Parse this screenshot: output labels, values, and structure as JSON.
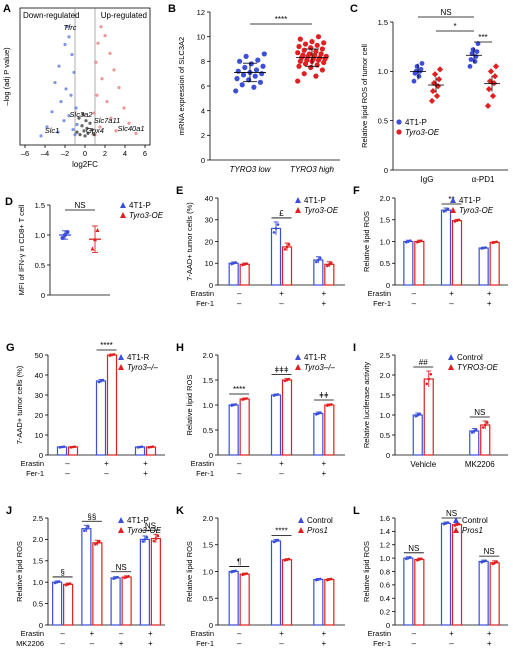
{
  "chart_data": [
    {
      "panel": "A",
      "type": "scatter",
      "xlabel": "log2FC",
      "ylabel": "–log (adj P value)",
      "xticks": [
        "–6",
        "–4",
        "–2",
        "0",
        "2",
        "4",
        "6"
      ],
      "xlim": [
        -6.5,
        6.5
      ],
      "annotations": [
        "Down-regulated",
        "Up-regulated",
        "Tfrc",
        "Slc3a2",
        "Slc7a11",
        "Gpx4",
        "Slc40a1",
        "Slc1"
      ],
      "series": [
        {
          "color": "#4a6cd4",
          "points": [
            [
              -1.8,
              9.0
            ],
            [
              -1.6,
              8.2
            ],
            [
              -2.0,
              7.6
            ],
            [
              -1.3,
              6.8
            ],
            [
              -2.6,
              5.9
            ],
            [
              -1.1,
              5.4
            ],
            [
              -3.0,
              4.6
            ],
            [
              -1.9,
              4.1
            ],
            [
              -1.4,
              3.6
            ],
            [
              -2.4,
              3.1
            ],
            [
              -0.9,
              2.6
            ],
            [
              -3.3,
              2.3
            ],
            [
              -1.6,
              2.0
            ],
            [
              -2.1,
              1.6
            ],
            [
              -0.8,
              1.3
            ],
            [
              -3.8,
              1.1
            ],
            [
              -1.2,
              0.9
            ],
            [
              -2.7,
              0.7
            ],
            [
              -1.0,
              0.5
            ],
            [
              -4.4,
              0.4
            ]
          ]
        },
        {
          "color": "#e46c6c",
          "points": [
            [
              1.6,
              9.0
            ],
            [
              2.0,
              8.3
            ],
            [
              1.3,
              7.7
            ],
            [
              2.5,
              6.9
            ],
            [
              1.1,
              6.2
            ],
            [
              2.9,
              5.6
            ],
            [
              1.7,
              4.9
            ],
            [
              3.4,
              4.2
            ],
            [
              1.2,
              3.6
            ],
            [
              2.2,
              3.1
            ],
            [
              3.9,
              2.6
            ],
            [
              0.9,
              2.2
            ],
            [
              2.6,
              1.8
            ],
            [
              4.4,
              1.4
            ],
            [
              1.5,
              1.1
            ],
            [
              3.1,
              0.8
            ],
            [
              5.1,
              0.6
            ],
            [
              1.0,
              0.5
            ]
          ]
        },
        {
          "color": "#222222",
          "points": [
            [
              -0.6,
              1.8
            ],
            [
              -0.3,
              1.2
            ],
            [
              0.2,
              1.0
            ],
            [
              0.5,
              1.4
            ],
            [
              -0.1,
              0.8
            ],
            [
              0.3,
              0.6
            ],
            [
              -0.5,
              0.5
            ],
            [
              0.7,
              0.9
            ],
            [
              0.0,
              0.4
            ],
            [
              -0.8,
              0.7
            ],
            [
              0.9,
              0.5
            ],
            [
              0.1,
              1.6
            ],
            [
              -0.2,
              2.1
            ]
          ]
        }
      ]
    },
    {
      "panel": "B",
      "type": "scatter",
      "ylabel": "mRNA expression of SLC3A2",
      "categories": [
        "TYRO3 low",
        "TYRO3 high"
      ],
      "yticks": [
        "0",
        "2",
        "4",
        "6",
        "8",
        "10",
        "12"
      ],
      "ylim": [
        0,
        12
      ],
      "significance": "****",
      "series": [
        {
          "name": "TYRO3 low",
          "color": "#3b4fd8",
          "mean": 7.1,
          "sd": 0.75,
          "values": [
            5.6,
            5.9,
            6.1,
            6.3,
            6.5,
            6.6,
            6.8,
            6.9,
            7.0,
            7.1,
            7.2,
            7.3,
            7.5,
            7.6,
            7.8,
            8.0,
            8.1,
            8.4,
            8.6
          ]
        },
        {
          "name": "TYRO3 high",
          "color": "#e02020",
          "mean": 8.3,
          "sd": 0.7,
          "values": [
            6.4,
            6.8,
            7.0,
            7.3,
            7.5,
            7.6,
            7.7,
            7.8,
            7.9,
            8.0,
            8.0,
            8.1,
            8.1,
            8.2,
            8.2,
            8.3,
            8.3,
            8.4,
            8.4,
            8.5,
            8.5,
            8.6,
            8.6,
            8.7,
            8.8,
            8.9,
            9.0,
            9.1,
            9.2,
            9.3,
            9.4,
            9.5,
            9.6,
            9.8,
            10.0
          ]
        }
      ]
    },
    {
      "panel": "C",
      "type": "scatter",
      "ylabel": "Relative lipid ROS of tumor cell",
      "categories": [
        "IgG",
        "α-PD1"
      ],
      "yticks": [
        "0",
        "0.5",
        "1.0",
        "1.5"
      ],
      "ylim": [
        0,
        1.5
      ],
      "annotations": [
        "NS",
        "*",
        "***"
      ],
      "series": [
        {
          "name": "4T1-P",
          "color": "#3b4fd8",
          "IgG": [
            0.9,
            0.95,
            0.98,
            1.0,
            1.0,
            1.02,
            1.05,
            1.08
          ],
          "α-PD1": [
            1.05,
            1.1,
            1.12,
            1.15,
            1.18,
            1.2,
            1.22,
            1.28
          ]
        },
        {
          "name": "Tyro3-OE",
          "color": "#e02020",
          "IgG": [
            0.7,
            0.75,
            0.8,
            0.85,
            0.88,
            0.92,
            0.97,
            1.02
          ],
          "α-PD1": [
            0.65,
            0.75,
            0.82,
            0.88,
            0.9,
            0.95,
            1.0,
            1.05
          ]
        }
      ]
    },
    {
      "panel": "D",
      "type": "bar",
      "ylabel": "MFI of IFN-γ in CD8+ T cell",
      "yticks": [
        "0",
        "0.5",
        "1.0",
        "1.5"
      ],
      "ylim": [
        0,
        1.5
      ],
      "annotations": [
        "NS"
      ],
      "series": [
        {
          "name": "4T1-P",
          "color": "#3b4fd8",
          "values": [
            1.0
          ],
          "err": [
            0.07
          ]
        },
        {
          "name": "Tyro3-OE",
          "color": "#e02020",
          "values": [
            0.93
          ],
          "err": [
            0.22
          ]
        }
      ]
    },
    {
      "panel": "E",
      "type": "bar",
      "ylabel": "7-AAD+ tumor cells (%)",
      "yticks": [
        "0",
        "10",
        "20",
        "30",
        "40"
      ],
      "ylim": [
        0,
        40
      ],
      "rows": [
        {
          "label": "Erastin",
          "values": [
            "–",
            "+",
            "+"
          ]
        },
        {
          "label": "Fer-1",
          "values": [
            "–",
            "–",
            "+"
          ]
        }
      ],
      "annotations": [
        "£"
      ],
      "series": [
        {
          "name": "4T1-P",
          "color": "#3b4fd8",
          "values": [
            10,
            26,
            11.5
          ],
          "err": [
            0.6,
            3.0,
            1.5
          ]
        },
        {
          "name": "Tyro3-OE",
          "color": "#e02020",
          "values": [
            9.5,
            17.5,
            9.5
          ],
          "err": [
            0.6,
            1.8,
            1.2
          ]
        }
      ]
    },
    {
      "panel": "F",
      "type": "bar",
      "ylabel": "Relative lipid ROS",
      "yticks": [
        "0",
        "0.5",
        "1.0",
        "1.5",
        "2.0"
      ],
      "ylim": [
        0,
        2
      ],
      "rows": [
        {
          "label": "Erastin",
          "values": [
            "–",
            "+",
            "+"
          ]
        },
        {
          "label": "Fer-1",
          "values": [
            "–",
            "–",
            "+"
          ]
        }
      ],
      "annotations": [
        "**"
      ],
      "series": [
        {
          "name": "4T1-P",
          "color": "#3b4fd8",
          "values": [
            1.0,
            1.72,
            0.85
          ],
          "err": [
            0.03,
            0.05,
            0.02
          ]
        },
        {
          "name": "Tyro3-OE",
          "color": "#e02020",
          "values": [
            1.0,
            1.48,
            0.98
          ],
          "err": [
            0.03,
            0.03,
            0.02
          ]
        }
      ]
    },
    {
      "panel": "G",
      "type": "bar",
      "ylabel": "7-AAD+ tumor cells (%)",
      "yticks": [
        "0",
        "10",
        "20",
        "30",
        "40",
        "50"
      ],
      "ylim": [
        0,
        50
      ],
      "rows": [
        {
          "label": "Erastin",
          "values": [
            "–",
            "+",
            "+"
          ]
        },
        {
          "label": "Fer-1",
          "values": [
            "–",
            "–",
            "+"
          ]
        }
      ],
      "annotations": [
        "****"
      ],
      "series": [
        {
          "name": "4T1-R",
          "color": "#3b4fd8",
          "values": [
            4.0,
            37.0,
            4.0
          ],
          "err": [
            0.3,
            0.8,
            0.3
          ]
        },
        {
          "name": "Tyro3–/–",
          "color": "#e02020",
          "values": [
            4.0,
            50.0,
            4.0
          ],
          "err": [
            0.3,
            0.5,
            0.3
          ]
        }
      ]
    },
    {
      "panel": "H",
      "type": "bar",
      "ylabel": "Relative lipid ROS",
      "yticks": [
        "0",
        "0.5",
        "1.0",
        "1.5",
        "2.0"
      ],
      "ylim": [
        0,
        2
      ],
      "rows": [
        {
          "label": "Erastin",
          "values": [
            "–",
            "+",
            "+"
          ]
        },
        {
          "label": "Fer-1",
          "values": [
            "–",
            "–",
            "+"
          ]
        }
      ],
      "annotations": [
        "****",
        "ǂǂǂ",
        "ǂǂ"
      ],
      "series": [
        {
          "name": "4T1-R",
          "color": "#3b4fd8",
          "values": [
            1.0,
            1.2,
            0.83
          ],
          "err": [
            0.02,
            0.02,
            0.03
          ]
        },
        {
          "name": "Tyro3–/–",
          "color": "#e02020",
          "values": [
            1.12,
            1.5,
            1.0
          ],
          "err": [
            0.02,
            0.03,
            0.02
          ]
        }
      ]
    },
    {
      "panel": "I",
      "type": "bar",
      "ylabel": "Relative luciferase activity",
      "categories": [
        "Vehicle",
        "MK2206"
      ],
      "yticks": [
        "0",
        "0.5",
        "1.0",
        "1.5",
        "2.0",
        "2.5"
      ],
      "ylim": [
        0,
        2.5
      ],
      "annotations": [
        "##",
        "NS"
      ],
      "series": [
        {
          "name": "Control",
          "color": "#3b4fd8",
          "values": [
            1.0,
            0.6
          ],
          "err": [
            0.05,
            0.06
          ]
        },
        {
          "name": "TYRO3-OE",
          "color": "#e02020",
          "values": [
            1.9,
            0.75
          ],
          "err": [
            0.2,
            0.1
          ]
        }
      ]
    },
    {
      "panel": "J",
      "type": "bar",
      "ylabel": "Relative lipid ROS",
      "yticks": [
        "0",
        "0.5",
        "1.0",
        "1.5",
        "2.0",
        "2.5"
      ],
      "ylim": [
        0,
        2.5
      ],
      "rows": [
        {
          "label": "Erastin",
          "values": [
            "–",
            "+",
            "–",
            "+"
          ]
        },
        {
          "label": "MK2206",
          "values": [
            "–",
            "–",
            "+",
            "+"
          ]
        }
      ],
      "annotations": [
        "§",
        "§§",
        "NS",
        "NS"
      ],
      "series": [
        {
          "name": "4T1-P",
          "color": "#3b4fd8",
          "values": [
            1.0,
            2.25,
            1.1,
            2.0
          ],
          "err": [
            0.03,
            0.08,
            0.03,
            0.08
          ]
        },
        {
          "name": "Tyro3-OE",
          "color": "#e02020",
          "values": [
            0.95,
            1.92,
            1.12,
            2.02
          ],
          "err": [
            0.03,
            0.06,
            0.03,
            0.1
          ]
        }
      ]
    },
    {
      "panel": "K",
      "type": "bar",
      "ylabel": "Relative lipid ROS",
      "yticks": [
        "0",
        "0.5",
        "1.0",
        "1.5",
        "2.0"
      ],
      "ylim": [
        0,
        2
      ],
      "rows": [
        {
          "label": "Erastin",
          "values": [
            "–",
            "+",
            "+"
          ]
        },
        {
          "label": "Fer-1",
          "values": [
            "–",
            "–",
            "+"
          ]
        }
      ],
      "annotations": [
        "¶",
        "****"
      ],
      "series": [
        {
          "name": "Control",
          "color": "#3b4fd8",
          "values": [
            1.0,
            1.57,
            0.85
          ],
          "err": [
            0.02,
            0.03,
            0.02
          ]
        },
        {
          "name": "Pros1",
          "color": "#e02020",
          "values": [
            0.95,
            1.22,
            0.85
          ],
          "err": [
            0.02,
            0.02,
            0.02
          ]
        }
      ]
    },
    {
      "panel": "L",
      "type": "bar",
      "ylabel": "Relative lipid ROS",
      "yticks": [
        "0",
        "0.2",
        "0.4",
        "0.6",
        "0.8",
        "1.0",
        "1.2",
        "1.4",
        "1.6"
      ],
      "ylim": [
        0,
        1.6
      ],
      "rows": [
        {
          "label": "Erastin",
          "values": [
            "–",
            "+",
            "+"
          ]
        },
        {
          "label": "Fer-1",
          "values": [
            "–",
            "–",
            "+"
          ]
        }
      ],
      "annotations": [
        "NS",
        "NS",
        "NS"
      ],
      "series": [
        {
          "name": "Control",
          "color": "#3b4fd8",
          "values": [
            1.0,
            1.52,
            0.95
          ],
          "err": [
            0.02,
            0.02,
            0.02
          ]
        },
        {
          "name": "Pros1",
          "color": "#e02020",
          "values": [
            0.98,
            1.5,
            0.93
          ],
          "err": [
            0.02,
            0.02,
            0.03
          ]
        }
      ]
    }
  ]
}
